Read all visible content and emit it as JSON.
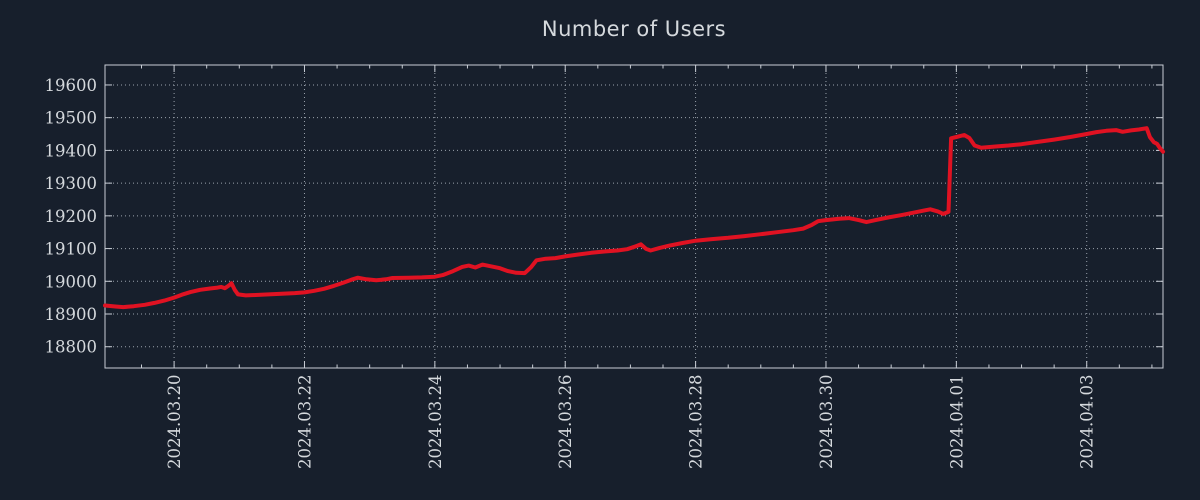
{
  "title": "Number of Users",
  "colors": {
    "background": "#171f2c",
    "text": "#d5d9dd",
    "grid": "#9aa2ac",
    "axis": "#c9ced6",
    "series": "#e01222"
  },
  "chart_data": {
    "type": "line",
    "title": "Number of Users",
    "xlabel": "",
    "ylabel": "",
    "legend": false,
    "grid": true,
    "x_axis": {
      "kind": "time",
      "epoch": "2024-03-19",
      "range_days": [
        -0.06,
        16.17
      ],
      "major_tick_days": [
        1,
        3,
        5,
        7,
        9,
        11,
        13,
        15
      ],
      "tick_labels": [
        "2024.03.20",
        "2024.03.22",
        "2024.03.24",
        "2024.03.26",
        "2024.03.28",
        "2024.03.30",
        "2024.04.01",
        "2024.04.03"
      ],
      "minor_tick_step_days": 0.5
    },
    "y_axis": {
      "range": [
        18735,
        19661
      ],
      "tick_values": [
        18800,
        18900,
        19000,
        19100,
        19200,
        19300,
        19400,
        19500,
        19600
      ],
      "tick_labels": [
        "18800",
        "18900",
        "19000",
        "19100",
        "19200",
        "19300",
        "19400",
        "19500",
        "19600"
      ]
    },
    "series": [
      {
        "name": "Number of Users",
        "points": [
          [
            -0.06,
            18926
          ],
          [
            0.1,
            18923
          ],
          [
            0.22,
            18921
          ],
          [
            0.38,
            18924
          ],
          [
            0.55,
            18928
          ],
          [
            0.7,
            18934
          ],
          [
            0.85,
            18941
          ],
          [
            1.0,
            18950
          ],
          [
            1.12,
            18959
          ],
          [
            1.25,
            18967
          ],
          [
            1.4,
            18974
          ],
          [
            1.55,
            18978
          ],
          [
            1.65,
            18980
          ],
          [
            1.72,
            18983
          ],
          [
            1.78,
            18979
          ],
          [
            1.84,
            18987
          ],
          [
            1.88,
            18994
          ],
          [
            1.93,
            18974
          ],
          [
            1.98,
            18960
          ],
          [
            2.1,
            18957
          ],
          [
            2.25,
            18958
          ],
          [
            2.45,
            18960
          ],
          [
            2.65,
            18962
          ],
          [
            2.85,
            18964
          ],
          [
            3.0,
            18966
          ],
          [
            3.15,
            18971
          ],
          [
            3.3,
            18977
          ],
          [
            3.45,
            18986
          ],
          [
            3.6,
            18996
          ],
          [
            3.72,
            19005
          ],
          [
            3.82,
            19011
          ],
          [
            3.95,
            19006
          ],
          [
            4.1,
            19003
          ],
          [
            4.25,
            19006
          ],
          [
            4.35,
            19010
          ],
          [
            4.6,
            19011
          ],
          [
            4.8,
            19012
          ],
          [
            5.0,
            19014
          ],
          [
            5.12,
            19019
          ],
          [
            5.28,
            19031
          ],
          [
            5.42,
            19044
          ],
          [
            5.52,
            19048
          ],
          [
            5.62,
            19042
          ],
          [
            5.73,
            19051
          ],
          [
            5.85,
            19046
          ],
          [
            6.0,
            19040
          ],
          [
            6.12,
            19031
          ],
          [
            6.25,
            19026
          ],
          [
            6.38,
            19025
          ],
          [
            6.48,
            19044
          ],
          [
            6.56,
            19064
          ],
          [
            6.7,
            19069
          ],
          [
            6.85,
            19071
          ],
          [
            7.0,
            19076
          ],
          [
            7.2,
            19082
          ],
          [
            7.4,
            19087
          ],
          [
            7.6,
            19091
          ],
          [
            7.8,
            19094
          ],
          [
            7.95,
            19098
          ],
          [
            8.1,
            19108
          ],
          [
            8.16,
            19113
          ],
          [
            8.24,
            19099
          ],
          [
            8.31,
            19094
          ],
          [
            8.45,
            19102
          ],
          [
            8.6,
            19109
          ],
          [
            8.8,
            19117
          ],
          [
            9.0,
            19124
          ],
          [
            9.25,
            19129
          ],
          [
            9.5,
            19133
          ],
          [
            9.75,
            19138
          ],
          [
            10.0,
            19144
          ],
          [
            10.25,
            19150
          ],
          [
            10.5,
            19156
          ],
          [
            10.65,
            19161
          ],
          [
            10.78,
            19172
          ],
          [
            10.88,
            19184
          ],
          [
            11.0,
            19187
          ],
          [
            11.2,
            19191
          ],
          [
            11.35,
            19193
          ],
          [
            11.5,
            19187
          ],
          [
            11.62,
            19181
          ],
          [
            11.78,
            19188
          ],
          [
            11.95,
            19195
          ],
          [
            12.15,
            19202
          ],
          [
            12.35,
            19210
          ],
          [
            12.5,
            19216
          ],
          [
            12.6,
            19220
          ],
          [
            12.72,
            19213
          ],
          [
            12.8,
            19206
          ],
          [
            12.88,
            19212
          ],
          [
            12.92,
            19437
          ],
          [
            13.0,
            19441
          ],
          [
            13.12,
            19447
          ],
          [
            13.2,
            19438
          ],
          [
            13.28,
            19415
          ],
          [
            13.38,
            19408
          ],
          [
            13.6,
            19412
          ],
          [
            13.8,
            19415
          ],
          [
            14.0,
            19419
          ],
          [
            14.25,
            19426
          ],
          [
            14.5,
            19433
          ],
          [
            14.75,
            19441
          ],
          [
            15.0,
            19450
          ],
          [
            15.15,
            19456
          ],
          [
            15.3,
            19460
          ],
          [
            15.45,
            19462
          ],
          [
            15.55,
            19457
          ],
          [
            15.68,
            19461
          ],
          [
            15.8,
            19464
          ],
          [
            15.92,
            19468
          ],
          [
            15.97,
            19440
          ],
          [
            16.03,
            19425
          ],
          [
            16.08,
            19420
          ],
          [
            16.12,
            19408
          ],
          [
            16.17,
            19396
          ]
        ]
      }
    ]
  }
}
